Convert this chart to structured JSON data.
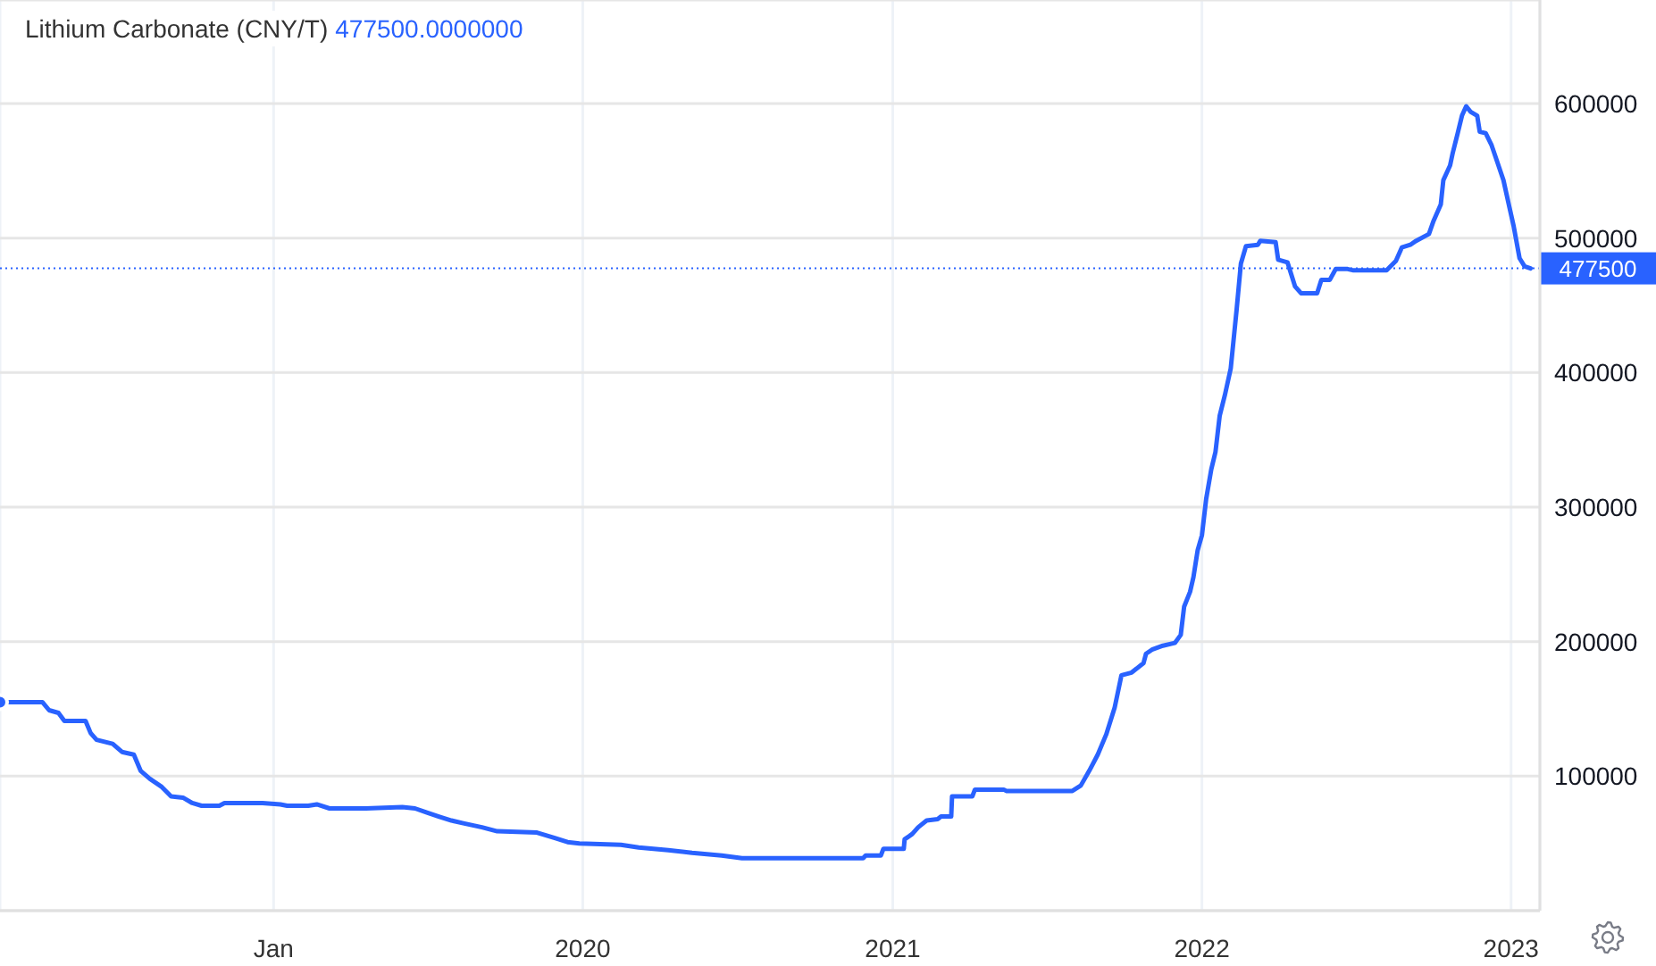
{
  "chart_data": {
    "type": "line",
    "title": "Lithium Carbonate (CNY/T)",
    "subtitle": "477500.0000000",
    "color": "#2962ff",
    "x": [
      "2018-02-12",
      "2018-04-03",
      "2018-04-11",
      "2018-04-22",
      "2018-04-29",
      "2018-05-24",
      "2018-05-30",
      "2018-06-06",
      "2018-06-25",
      "2018-07-06",
      "2018-07-20",
      "2018-07-28",
      "2018-08-08",
      "2018-08-22",
      "2018-09-02",
      "2018-09-16",
      "2018-09-27",
      "2018-10-08",
      "2018-10-29",
      "2018-11-04",
      "2018-12-19",
      "2019-01-09",
      "2019-01-17",
      "2019-02-11",
      "2019-02-21",
      "2019-03-08",
      "2019-03-26",
      "2019-04-20",
      "2019-06-02",
      "2019-06-17",
      "2019-07-01",
      "2019-07-15",
      "2019-07-30",
      "2019-08-13",
      "2019-09-04",
      "2019-09-22",
      "2019-11-08",
      "2019-11-29",
      "2019-12-14",
      "2019-12-28",
      "2020-02-15",
      "2020-03-07",
      "2020-04-11",
      "2020-05-09",
      "2020-06-13",
      "2020-07-07",
      "2020-11-13",
      "2020-11-27",
      "2020-11-30",
      "2020-12-18",
      "2020-12-21",
      "2021-01-14",
      "2021-01-15",
      "2021-01-24",
      "2021-01-31",
      "2021-02-10",
      "2021-02-23",
      "2021-02-27",
      "2021-03-11",
      "2021-03-12",
      "2021-04-05",
      "2021-04-08",
      "2021-05-12",
      "2021-05-15",
      "2021-08-01",
      "2021-08-11",
      "2021-08-21",
      "2021-08-31",
      "2021-09-10",
      "2021-09-20",
      "2021-09-28",
      "2021-10-10",
      "2021-10-24",
      "2021-10-27",
      "2021-11-03",
      "2021-11-16",
      "2021-11-30",
      "2021-12-07",
      "2021-12-11",
      "2021-12-18",
      "2021-12-22",
      "2021-12-27",
      "2022-01-01",
      "2022-01-06",
      "2022-01-12",
      "2022-01-17",
      "2022-01-22",
      "2022-01-28",
      "2022-02-04",
      "2022-02-11",
      "2022-02-16",
      "2022-02-22",
      "2022-03-08",
      "2022-03-11",
      "2022-03-29",
      "2022-04-01",
      "2022-04-12",
      "2022-04-21",
      "2022-04-28",
      "2022-05-17",
      "2022-05-22",
      "2022-06-01",
      "2022-06-08",
      "2022-06-22",
      "2022-06-29",
      "2022-08-07",
      "2022-08-18",
      "2022-08-25",
      "2022-09-04",
      "2022-09-11",
      "2022-09-26",
      "2022-10-01",
      "2022-10-10",
      "2022-10-13",
      "2022-10-21",
      "2022-10-24",
      "2022-10-30",
      "2022-11-04",
      "2022-11-09",
      "2022-11-14",
      "2022-11-22",
      "2022-11-25",
      "2022-12-02",
      "2022-12-09",
      "2022-12-16",
      "2022-12-23",
      "2022-12-30",
      "2023-01-04",
      "2023-01-11",
      "2023-01-17",
      "2023-01-24"
    ],
    "values": [
      155000,
      155000,
      149000,
      147000,
      141000,
      141000,
      132000,
      127000,
      124000,
      118000,
      116000,
      104000,
      98000,
      92000,
      85000,
      84000,
      80000,
      78000,
      78000,
      80000,
      80000,
      79000,
      78000,
      78000,
      79000,
      76000,
      76000,
      76000,
      77000,
      76000,
      73000,
      70000,
      67000,
      65000,
      62000,
      59000,
      58000,
      54000,
      51000,
      50000,
      49000,
      47000,
      45000,
      43000,
      41000,
      39000,
      39000,
      39000,
      41000,
      41000,
      46000,
      46000,
      53000,
      57000,
      62000,
      67000,
      68000,
      70000,
      70000,
      85000,
      85000,
      90000,
      90000,
      89000,
      89000,
      93000,
      104000,
      116000,
      131000,
      151000,
      175000,
      177000,
      184000,
      191000,
      194000,
      197000,
      199000,
      205000,
      226000,
      237000,
      248000,
      268000,
      279000,
      306000,
      328000,
      341000,
      368000,
      383000,
      403000,
      447000,
      481000,
      494000,
      495000,
      498000,
      497000,
      484000,
      482000,
      464000,
      459000,
      459000,
      469000,
      469000,
      477000,
      477000,
      476000,
      476000,
      483000,
      493000,
      495000,
      498000,
      503000,
      512000,
      525000,
      543000,
      554000,
      563000,
      578000,
      591000,
      598000,
      594000,
      591000,
      579000,
      578000,
      569000,
      556000,
      543000,
      523000,
      509000,
      485000,
      479000,
      477500
    ],
    "xlim": [
      "2018-02-12",
      "2023-02-04"
    ],
    "ylim": [
      0,
      677000
    ],
    "xticks": [
      {
        "value": "2019-01-01",
        "label": "Jan"
      },
      {
        "value": "2020-01-01",
        "label": "2020"
      },
      {
        "value": "2021-01-01",
        "label": "2021"
      },
      {
        "value": "2022-01-01",
        "label": "2022"
      },
      {
        "value": "2023-01-01",
        "label": "2023"
      }
    ],
    "yticks": [
      100000,
      200000,
      300000,
      400000,
      500000,
      600000
    ],
    "grid": true,
    "ref_lines": [
      {
        "axis": "y",
        "value": 477500,
        "label": "477500",
        "color": "#2962ff",
        "line_style": "dotted"
      }
    ]
  }
}
